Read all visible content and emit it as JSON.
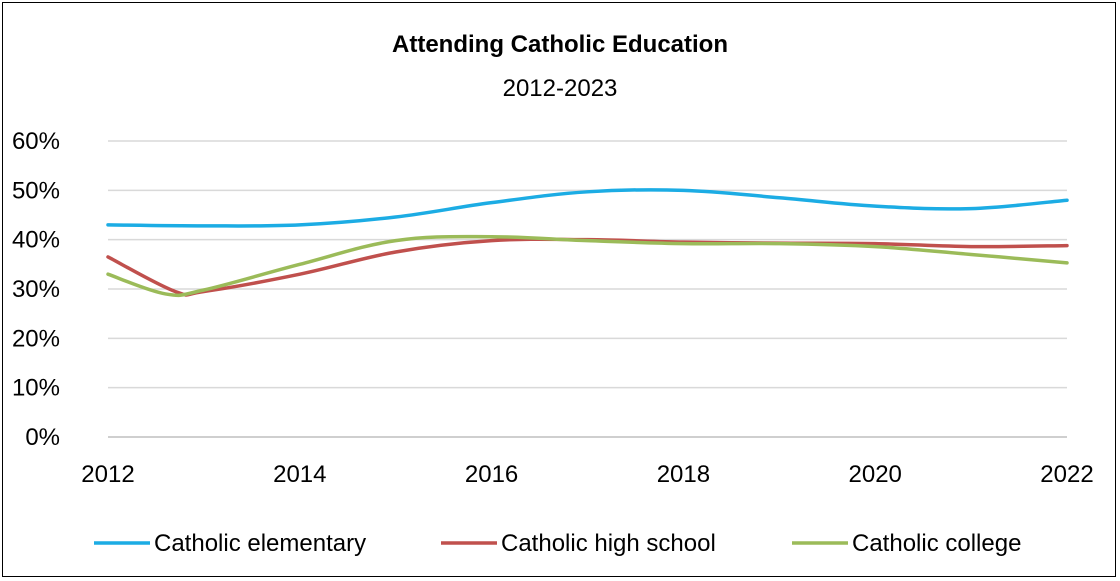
{
  "chart_data": {
    "type": "line",
    "title": "Attending Catholic Education",
    "subtitle": "2012-2023",
    "xlabel": "",
    "ylabel": "",
    "x_ticks": [
      "2012",
      "2014",
      "2016",
      "2018",
      "2020",
      "2022"
    ],
    "y_ticks": [
      "0%",
      "10%",
      "20%",
      "30%",
      "40%",
      "50%",
      "60%"
    ],
    "xlim": [
      2012,
      2022
    ],
    "ylim": [
      0,
      60
    ],
    "grid": true,
    "legend_position": "bottom",
    "series": [
      {
        "name": "Catholic elementary",
        "color": "#1cace4",
        "x": [
          2012,
          2013,
          2014,
          2015,
          2016,
          2017,
          2018,
          2019,
          2020,
          2021,
          2022
        ],
        "values": [
          43,
          42.8,
          43,
          44.6,
          47.5,
          49.7,
          50,
          48.5,
          46.8,
          46.3,
          48
        ]
      },
      {
        "name": "Catholic high school",
        "color": "#c0504d",
        "x": [
          2012,
          2012.7,
          2013,
          2014,
          2015,
          2016,
          2017,
          2018,
          2019,
          2020,
          2021,
          2022
        ],
        "values": [
          36.5,
          29.5,
          29.5,
          33,
          37.5,
          39.8,
          40,
          39.5,
          39.3,
          39.2,
          38.6,
          38.8
        ]
      },
      {
        "name": "Catholic college",
        "color": "#9bbb59",
        "x": [
          2012,
          2012.6,
          2013,
          2014,
          2015,
          2016,
          2017,
          2018,
          2019,
          2020,
          2021,
          2022
        ],
        "values": [
          33,
          29,
          29.8,
          35,
          39.8,
          40.6,
          39.8,
          39.2,
          39.2,
          38.6,
          37,
          35.3
        ]
      }
    ]
  }
}
